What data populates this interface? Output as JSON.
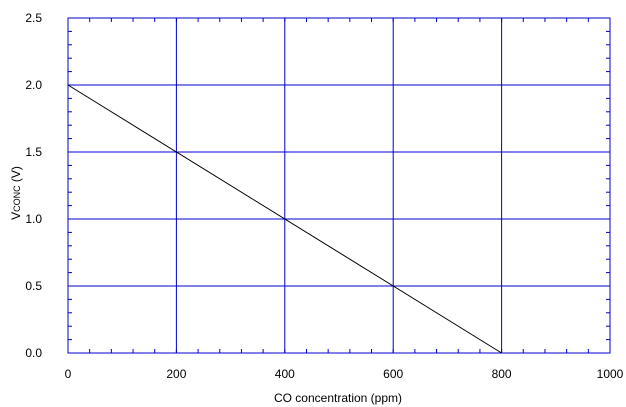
{
  "chart_data": {
    "type": "line",
    "xlabel": "CO concentration (ppm)",
    "ylabel": {
      "main": "V",
      "subscript": "CONC",
      "unit": "(V)"
    },
    "xlim": [
      0,
      1000
    ],
    "ylim": [
      0,
      2.5
    ],
    "x_ticks": [
      "0",
      "200",
      "400",
      "600",
      "800",
      "1000"
    ],
    "y_ticks": [
      "0.0",
      "0.5",
      "1.0",
      "1.5",
      "2.0",
      "2.5"
    ],
    "grid": true,
    "series": [
      {
        "x": [
          0,
          800
        ],
        "y": [
          2.0,
          0.0
        ]
      }
    ],
    "colors": {
      "grid": "#0000cc",
      "frame": "#0000cc",
      "line": "#000000"
    }
  }
}
